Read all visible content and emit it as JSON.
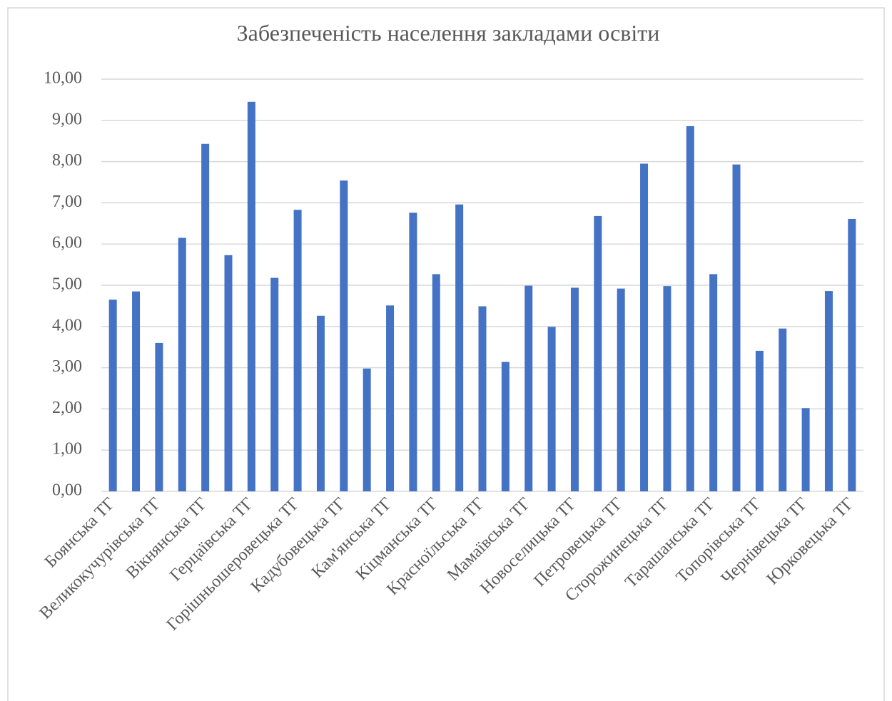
{
  "chart_data": {
    "type": "bar",
    "title": "Забезпеченість населення закладами освіти",
    "categories": [
      "Боянська ТГ",
      null,
      "Великокучурівська ТГ",
      null,
      "Вікнянська ТГ",
      null,
      "Герцаївська ТГ",
      null,
      "Горішньошеровецька ТГ",
      null,
      "Кадубовецька ТГ",
      null,
      "Кам'янська ТГ",
      null,
      "Кіцманська ТГ",
      null,
      "Красноїльська ТГ",
      null,
      "Мамаївська ТГ",
      null,
      "Новоселицька ТГ",
      null,
      "Петровецька ТГ",
      null,
      "Сторожинецька ТГ",
      null,
      "Тарашанська ТГ",
      null,
      "Топорівська ТГ",
      null,
      "Чернівецька ТГ",
      null,
      "Юрковецька ТГ"
    ],
    "values": [
      4.65,
      4.85,
      3.6,
      6.15,
      8.43,
      5.73,
      9.45,
      5.18,
      6.83,
      4.26,
      7.54,
      2.98,
      4.51,
      6.76,
      5.27,
      6.96,
      4.49,
      3.14,
      4.99,
      3.99,
      4.94,
      6.68,
      4.92,
      7.95,
      4.98,
      8.86,
      5.27,
      7.93,
      3.41,
      3.95,
      2.02,
      4.86,
      6.61
    ],
    "color": "#4472c4",
    "ylim": [
      0,
      10
    ],
    "yticks": [
      {
        "value": 0,
        "label": "0,00"
      },
      {
        "value": 1,
        "label": "1,00"
      },
      {
        "value": 2,
        "label": "2,00"
      },
      {
        "value": 3,
        "label": "3,00"
      },
      {
        "value": 4,
        "label": "4,00"
      },
      {
        "value": 5,
        "label": "5,00"
      },
      {
        "value": 6,
        "label": "6,00"
      },
      {
        "value": 7,
        "label": "7,00"
      },
      {
        "value": 8,
        "label": "8,00"
      },
      {
        "value": 9,
        "label": "9,00"
      },
      {
        "value": 10,
        "label": "10,00"
      }
    ],
    "grid": true
  }
}
